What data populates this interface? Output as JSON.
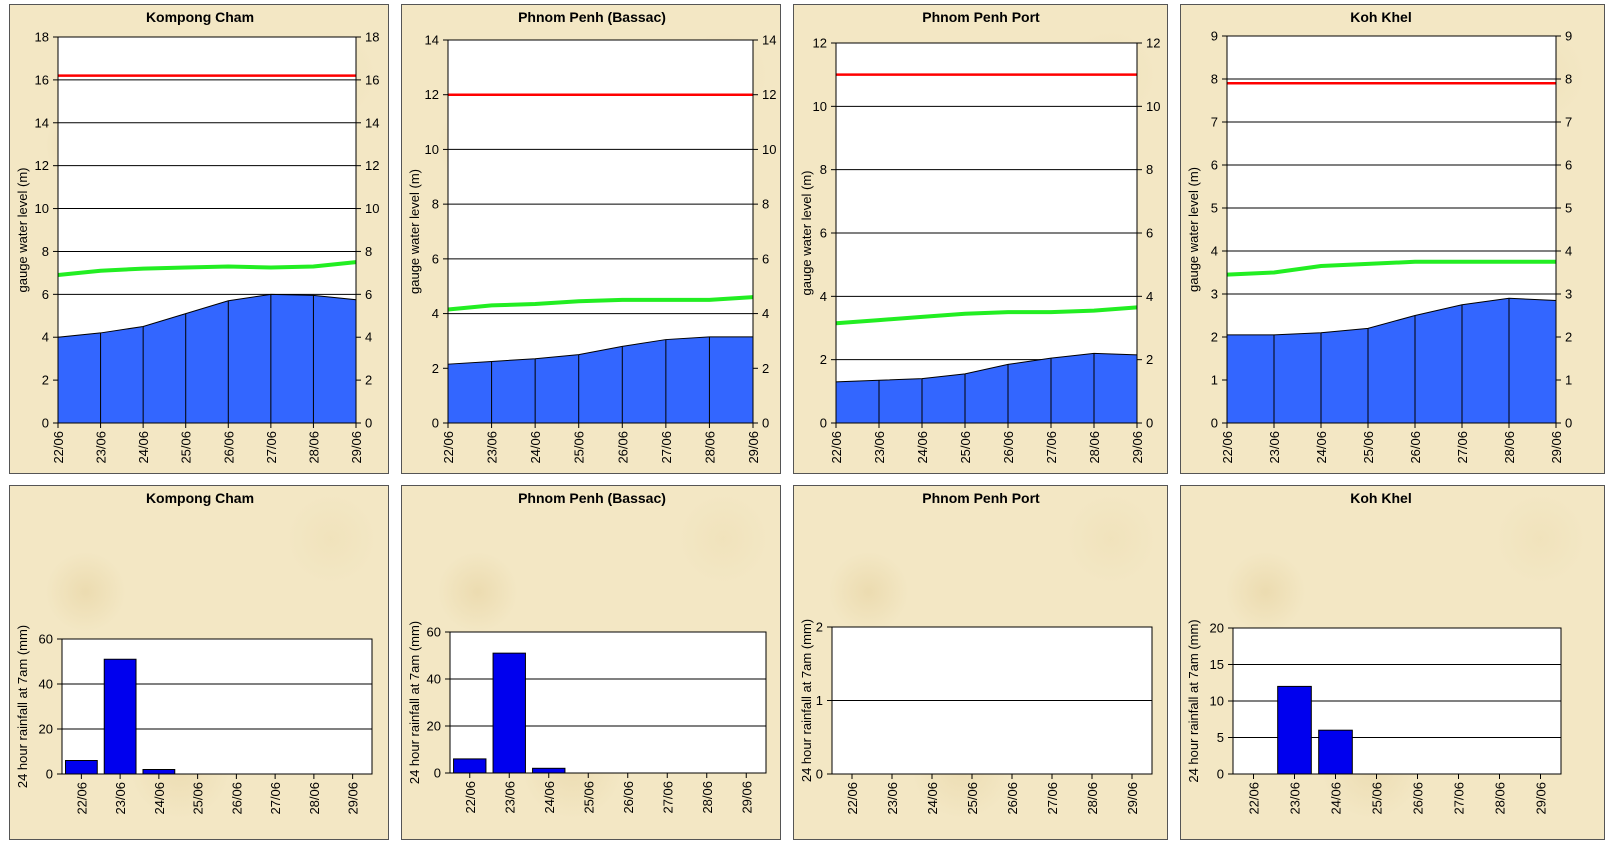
{
  "colors": {
    "level_fill": "#3366ff",
    "flood_line": "#ff0000",
    "alarm_line": "#22ee22",
    "rain_bar": "#0000ee"
  },
  "chart_data": [
    {
      "type": "area",
      "title": "Kompong Cham",
      "ylabel": "gauge water level (m)",
      "categories": [
        "22/06",
        "23/06",
        "24/06",
        "25/06",
        "26/06",
        "27/06",
        "28/06",
        "29/06"
      ],
      "ylim": [
        0,
        18
      ],
      "yticks": [
        0,
        2,
        4,
        6,
        8,
        10,
        12,
        14,
        16,
        18
      ],
      "series": [
        {
          "values": [
            4.0,
            4.2,
            4.5,
            5.1,
            5.7,
            6.0,
            5.95,
            5.75
          ]
        },
        {
          "values": [
            6.9,
            7.1,
            7.2,
            7.25,
            7.3,
            7.25,
            7.3,
            7.5
          ]
        },
        {
          "values": [
            16.2,
            16.2,
            16.2,
            16.2,
            16.2,
            16.2,
            16.2,
            16.2
          ]
        }
      ],
      "grid": true
    },
    {
      "type": "area",
      "title": "Phnom Penh (Bassac)",
      "ylabel": "gauge water level (m)",
      "categories": [
        "22/06",
        "23/06",
        "24/06",
        "25/06",
        "26/06",
        "27/06",
        "28/06",
        "29/06"
      ],
      "ylim": [
        0,
        14
      ],
      "yticks": [
        0,
        2,
        4,
        6,
        8,
        10,
        12,
        14
      ],
      "series": [
        {
          "values": [
            2.15,
            2.25,
            2.35,
            2.5,
            2.8,
            3.05,
            3.15,
            3.15
          ]
        },
        {
          "values": [
            4.15,
            4.3,
            4.35,
            4.45,
            4.5,
            4.5,
            4.5,
            4.6
          ]
        },
        {
          "values": [
            12.0,
            12.0,
            12.0,
            12.0,
            12.0,
            12.0,
            12.0,
            12.0
          ]
        }
      ],
      "grid": true
    },
    {
      "type": "area",
      "title": "Phnom Penh Port",
      "ylabel": "gauge water level (m)",
      "categories": [
        "22/06",
        "23/06",
        "24/06",
        "25/06",
        "26/06",
        "27/06",
        "28/06",
        "29/06"
      ],
      "ylim": [
        0,
        12
      ],
      "yticks": [
        0,
        2,
        4,
        6,
        8,
        10,
        12
      ],
      "series": [
        {
          "values": [
            1.3,
            1.35,
            1.4,
            1.55,
            1.85,
            2.05,
            2.2,
            2.15
          ]
        },
        {
          "values": [
            3.15,
            3.25,
            3.35,
            3.45,
            3.5,
            3.5,
            3.55,
            3.65
          ]
        },
        {
          "values": [
            11.0,
            11.0,
            11.0,
            11.0,
            11.0,
            11.0,
            11.0,
            11.0
          ]
        }
      ],
      "grid": true
    },
    {
      "type": "area",
      "title": "Koh Khel",
      "ylabel": "gauge water level (m)",
      "categories": [
        "22/06",
        "23/06",
        "24/06",
        "25/06",
        "26/06",
        "27/06",
        "28/06",
        "29/06"
      ],
      "ylim": [
        0,
        9
      ],
      "yticks": [
        0,
        1,
        2,
        3,
        4,
        5,
        6,
        7,
        8,
        9
      ],
      "series": [
        {
          "values": [
            2.05,
            2.05,
            2.1,
            2.2,
            2.5,
            2.75,
            2.9,
            2.85
          ]
        },
        {
          "values": [
            3.45,
            3.5,
            3.65,
            3.7,
            3.75,
            3.75,
            3.75,
            3.75
          ]
        },
        {
          "values": [
            7.9,
            7.9,
            7.9,
            7.9,
            7.9,
            7.9,
            7.9,
            7.9
          ]
        }
      ],
      "grid": true
    },
    {
      "type": "bar",
      "title": "Kompong Cham",
      "ylabel": "24 hour rainfall at 7am (mm)",
      "categories": [
        "22/06",
        "23/06",
        "24/06",
        "25/06",
        "26/06",
        "27/06",
        "28/06",
        "29/06"
      ],
      "values": [
        6,
        51,
        2,
        0,
        0,
        0,
        0,
        0
      ],
      "ylim": [
        0,
        60
      ],
      "yticks": [
        0,
        20,
        40,
        60
      ],
      "grid": true
    },
    {
      "type": "bar",
      "title": "Phnom Penh (Bassac)",
      "ylabel": "24 hour rainfall at 7am (mm)",
      "categories": [
        "22/06",
        "23/06",
        "24/06",
        "25/06",
        "26/06",
        "27/06",
        "28/06",
        "29/06"
      ],
      "values": [
        6,
        51,
        2,
        0,
        0,
        0,
        0,
        0
      ],
      "ylim": [
        0,
        60
      ],
      "yticks": [
        0,
        20,
        40,
        60
      ],
      "grid": true
    },
    {
      "type": "bar",
      "title": "Phnom Penh Port",
      "ylabel": "24 hour rainfall at 7am (mm)",
      "categories": [
        "22/06",
        "23/06",
        "24/06",
        "25/06",
        "26/06",
        "27/06",
        "28/06",
        "29/06"
      ],
      "values": [
        0,
        0,
        0,
        0,
        0,
        0,
        0,
        0
      ],
      "ylim": [
        0,
        2
      ],
      "yticks": [
        0,
        1,
        2
      ],
      "grid": true
    },
    {
      "type": "bar",
      "title": "Koh Khel",
      "ylabel": "24 hour rainfall at 7am (mm)",
      "categories": [
        "22/06",
        "23/06",
        "24/06",
        "25/06",
        "26/06",
        "27/06",
        "28/06",
        "29/06"
      ],
      "values": [
        0,
        12,
        6,
        0,
        0,
        0,
        0,
        0
      ],
      "ylim": [
        0,
        20
      ],
      "yticks": [
        0,
        5,
        10,
        15,
        20
      ],
      "grid": true
    }
  ]
}
